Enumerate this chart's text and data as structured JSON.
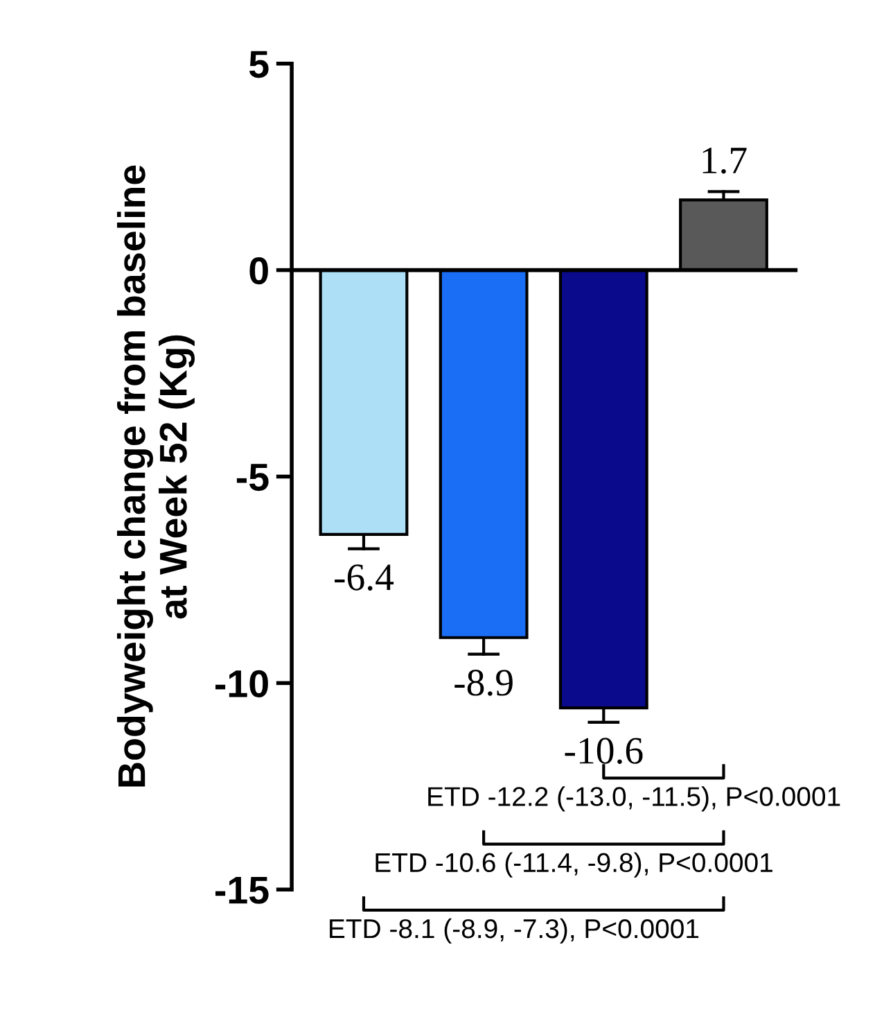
{
  "chart_data": {
    "type": "bar",
    "ylabel": "Bodyweight change from baseline\nat Week 52 (Kg)",
    "categories": [
      null,
      null,
      null,
      null
    ],
    "values": [
      -6.4,
      -8.9,
      -10.6,
      1.7
    ],
    "colors": [
      "#addff7",
      "#1a6ef5",
      "#0a0a8c",
      "#595959"
    ],
    "errors": [
      [
        -6.75,
        -6.4
      ],
      [
        -9.3,
        -8.9
      ],
      [
        -10.95,
        -10.6
      ],
      [
        1.7,
        1.9
      ]
    ],
    "data_labels": true,
    "ylim": [
      -15,
      5
    ],
    "yticks": [
      -15,
      -10,
      -5,
      0,
      5
    ],
    "annotations": [
      "ETD -12.2 (-13.0, -11.5), P<0.0001",
      "ETD -10.6 (-11.4, -9.8), P<0.0001",
      "ETD -8.1 (-8.9, -7.3), P<0.0001"
    ]
  }
}
